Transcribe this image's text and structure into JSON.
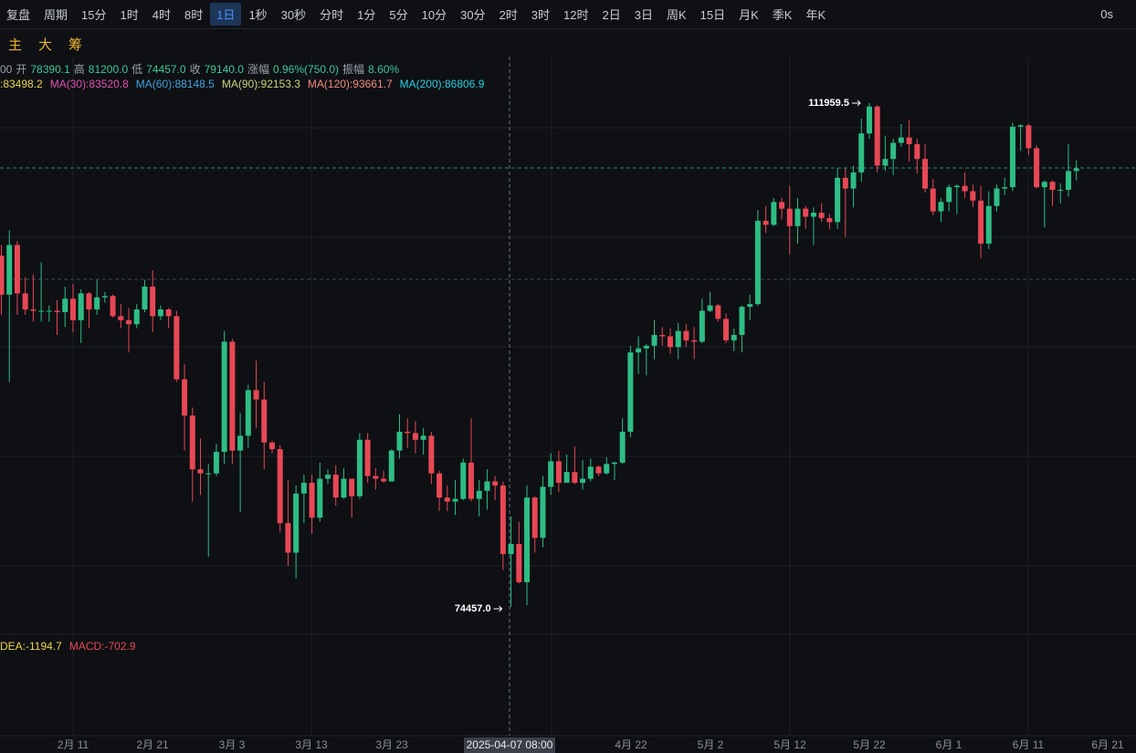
{
  "toolbar": {
    "replay": "复盘",
    "period_menu": "周期",
    "periods": [
      "15分",
      "1时",
      "4时",
      "8时",
      "1日",
      "1秒",
      "30秒",
      "分时",
      "1分",
      "5分",
      "10分",
      "30分",
      "2时",
      "3时",
      "12时",
      "2日",
      "3日",
      "周K",
      "15日",
      "月K",
      "季K",
      "年K"
    ],
    "countdown": "0s",
    "tools": [
      "主",
      "大",
      "筹"
    ]
  },
  "info": {
    "items": [
      "00",
      "开",
      "78390.1",
      "高",
      "81200.0",
      "低",
      "74457.0",
      "收",
      "79140.0",
      "涨幅",
      "0.96%(750.0)",
      "振幅",
      "8.60%"
    ]
  },
  "ma_legend": [
    {
      "text": ":83498.2",
      "color": "#e8d44d"
    },
    {
      "text": "MA(30):83520.8",
      "color": "#e14fb0"
    },
    {
      "text": "MA(60):88148.5",
      "color": "#3da5e0"
    },
    {
      "text": "MA(90):92153.3",
      "color": "#c8d67a"
    },
    {
      "text": "MA(120):93661.7",
      "color": "#f08a7a"
    },
    {
      "text": "MA(200):86806.9",
      "color": "#22d0e0"
    }
  ],
  "macd_legend": [
    {
      "text": "DEA:-1194.7",
      "color": "#e8d44d"
    },
    {
      "text": "MACD:-702.9",
      "color": "#e84855"
    }
  ],
  "x_axis_labels": [
    "2月 11",
    "2月 21",
    "3月 3",
    "3月 13",
    "3月 23",
    "4月 22",
    "5月 2",
    "5月 12",
    "5月 22",
    "6月 1",
    "6月 11",
    "6月 21"
  ],
  "crosshair_label": "2025-04-07 08:00",
  "chart_data": {
    "type": "candlestick",
    "up_color": "#2ebd85",
    "down_color": "#e84855",
    "ylim": [
      72080,
      115420
    ],
    "annotations": [
      "111959.5",
      "74457.0"
    ],
    "candles": [
      [
        100600,
        101400,
        96200,
        97700
      ],
      [
        97700,
        102500,
        91200,
        101400
      ],
      [
        101400,
        101700,
        96200,
        97800
      ],
      [
        97800,
        99000,
        96200,
        96600
      ],
      [
        96600,
        99200,
        95700,
        96500
      ],
      [
        96500,
        100100,
        95700,
        96500
      ],
      [
        96500,
        96900,
        95700,
        96500
      ],
      [
        96500,
        97300,
        94700,
        96400
      ],
      [
        96400,
        98300,
        95300,
        97400
      ],
      [
        97400,
        98500,
        94900,
        95800
      ],
      [
        95800,
        98100,
        94100,
        97800
      ],
      [
        97800,
        97900,
        95200,
        96600
      ],
      [
        96600,
        98800,
        96200,
        97500
      ],
      [
        97500,
        97900,
        97100,
        97600
      ],
      [
        97600,
        97700,
        96000,
        96100
      ],
      [
        96100,
        97000,
        95200,
        95800
      ],
      [
        95800,
        96700,
        93400,
        95500
      ],
      [
        95500,
        97000,
        95200,
        96600
      ],
      [
        96600,
        98800,
        96400,
        98300
      ],
      [
        98300,
        99500,
        94900,
        96100
      ],
      [
        96100,
        96900,
        95800,
        96600
      ],
      [
        96600,
        96700,
        95200,
        96100
      ],
      [
        96100,
        96500,
        91200,
        91400
      ],
      [
        91400,
        92500,
        86100,
        88700
      ],
      [
        88700,
        89300,
        82300,
        84700
      ],
      [
        84700,
        87000,
        82800,
        84400
      ],
      [
        84400,
        85100,
        78200,
        84400
      ],
      [
        84400,
        86600,
        84200,
        86000
      ],
      [
        86000,
        95000,
        85100,
        94200
      ],
      [
        94200,
        94400,
        85100,
        86100
      ],
      [
        86100,
        88900,
        81500,
        87200
      ],
      [
        87200,
        91000,
        86300,
        90600
      ],
      [
        90600,
        92800,
        87800,
        89900
      ],
      [
        89900,
        91200,
        84700,
        86700
      ],
      [
        86700,
        86800,
        85900,
        86200
      ],
      [
        86200,
        86500,
        80000,
        80700
      ],
      [
        80700,
        83900,
        77500,
        78500
      ],
      [
        78500,
        83500,
        76600,
        82900
      ],
      [
        82900,
        84300,
        80700,
        83700
      ],
      [
        83700,
        84300,
        79900,
        81100
      ],
      [
        81100,
        85200,
        80800,
        84000
      ],
      [
        84000,
        84700,
        83600,
        84300
      ],
      [
        84300,
        85000,
        82000,
        82600
      ],
      [
        82600,
        84800,
        82500,
        84000
      ],
      [
        84000,
        84000,
        81100,
        82700
      ],
      [
        82700,
        87400,
        82500,
        86900
      ],
      [
        86900,
        87400,
        83700,
        84200
      ],
      [
        84200,
        84800,
        83200,
        84000
      ],
      [
        84000,
        84600,
        83700,
        83800
      ],
      [
        83800,
        86200,
        83800,
        86100
      ],
      [
        86100,
        88800,
        85500,
        87500
      ],
      [
        87500,
        88500,
        86300,
        87400
      ],
      [
        87400,
        88300,
        85900,
        86900
      ],
      [
        86900,
        87800,
        85800,
        87200
      ],
      [
        87200,
        87500,
        83600,
        84400
      ],
      [
        84400,
        84600,
        81600,
        82600
      ],
      [
        82600,
        83500,
        81600,
        82300
      ],
      [
        82300,
        83900,
        81300,
        82500
      ],
      [
        82500,
        85500,
        82400,
        85200
      ],
      [
        85200,
        88500,
        82300,
        82500
      ],
      [
        82500,
        83900,
        81200,
        83100
      ],
      [
        83100,
        84700,
        81700,
        83800
      ],
      [
        83800,
        84200,
        82400,
        83500
      ],
      [
        83500,
        83800,
        77200,
        78400
      ],
      [
        78390.1,
        81200,
        74457,
        79140
      ],
      [
        79140,
        80800,
        76200,
        76300
      ],
      [
        76300,
        83500,
        74600,
        82600
      ],
      [
        82600,
        82700,
        78500,
        79600
      ],
      [
        79600,
        84200,
        78900,
        83400
      ],
      [
        83400,
        85900,
        82800,
        85300
      ],
      [
        85300,
        86100,
        83000,
        83700
      ],
      [
        83700,
        85800,
        83700,
        84500
      ],
      [
        84500,
        86400,
        83600,
        83700
      ],
      [
        83700,
        85400,
        83200,
        84000
      ],
      [
        84000,
        85500,
        83800,
        84900
      ],
      [
        84900,
        85000,
        84200,
        84400
      ],
      [
        84400,
        85600,
        84300,
        85100
      ],
      [
        85100,
        85300,
        83900,
        85200
      ],
      [
        85200,
        88500,
        85100,
        87500
      ],
      [
        87500,
        93900,
        87100,
        93400
      ],
      [
        93400,
        94600,
        91800,
        93700
      ],
      [
        93700,
        94000,
        91700,
        93900
      ],
      [
        93900,
        95800,
        92900,
        94700
      ],
      [
        94700,
        95300,
        93900,
        94600
      ],
      [
        94600,
        95200,
        93300,
        93800
      ],
      [
        93800,
        95600,
        92900,
        95000
      ],
      [
        95000,
        95500,
        93800,
        94300
      ],
      [
        94300,
        95300,
        92900,
        94200
      ],
      [
        94200,
        97400,
        94100,
        96500
      ],
      [
        96500,
        97900,
        96400,
        96900
      ],
      [
        96900,
        97000,
        95700,
        95900
      ],
      [
        95900,
        96300,
        94100,
        94300
      ],
      [
        94300,
        95200,
        93500,
        94700
      ],
      [
        94700,
        96900,
        93400,
        96800
      ],
      [
        96800,
        97700,
        95800,
        97000
      ],
      [
        97000,
        104000,
        96900,
        103200
      ],
      [
        103200,
        104300,
        102300,
        102900
      ],
      [
        102900,
        104900,
        102800,
        104600
      ],
      [
        104600,
        104900,
        103300,
        104100
      ],
      [
        104100,
        105800,
        100700,
        102800
      ],
      [
        102800,
        104900,
        101500,
        104100
      ],
      [
        104100,
        104300,
        102600,
        103500
      ],
      [
        103500,
        104200,
        101400,
        103800
      ],
      [
        103800,
        104500,
        103100,
        103400
      ],
      [
        103400,
        103700,
        102600,
        103100
      ],
      [
        103100,
        107100,
        102600,
        106400
      ],
      [
        106400,
        107100,
        102000,
        105600
      ],
      [
        105600,
        107300,
        104200,
        106800
      ],
      [
        106800,
        110800,
        106100,
        109700
      ],
      [
        109700,
        111959.5,
        109300,
        111700
      ],
      [
        111700,
        111800,
        106800,
        107300
      ],
      [
        107300,
        109500,
        106900,
        107800
      ],
      [
        107800,
        109300,
        106600,
        109000
      ],
      [
        109000,
        110400,
        108700,
        109400
      ],
      [
        109400,
        110700,
        107600,
        108900
      ],
      [
        108900,
        109300,
        106700,
        107800
      ],
      [
        107800,
        108900,
        105300,
        105600
      ],
      [
        105600,
        106300,
        103600,
        103900
      ],
      [
        103900,
        104900,
        103100,
        104600
      ],
      [
        104600,
        105900,
        103900,
        105700
      ],
      [
        105700,
        105900,
        103700,
        105800
      ],
      [
        105800,
        106800,
        104900,
        105400
      ],
      [
        105400,
        105900,
        104200,
        104700
      ],
      [
        104700,
        105800,
        100400,
        101500
      ],
      [
        101500,
        105400,
        101100,
        104300
      ],
      [
        104300,
        105900,
        103900,
        105600
      ],
      [
        105600,
        106400,
        105100,
        105700
      ],
      [
        105700,
        110500,
        105400,
        110200
      ],
      [
        110200,
        110400,
        108400,
        110300
      ],
      [
        110300,
        110400,
        108100,
        108600
      ],
      [
        108600,
        108800,
        105600,
        105700
      ],
      [
        105700,
        106200,
        102700,
        106100
      ],
      [
        106100,
        106200,
        104300,
        105500
      ],
      [
        105500,
        106000,
        104500,
        105500
      ],
      [
        105500,
        108900,
        105000,
        106900
      ],
      [
        106900,
        107700,
        106200,
        107100
      ]
    ]
  }
}
